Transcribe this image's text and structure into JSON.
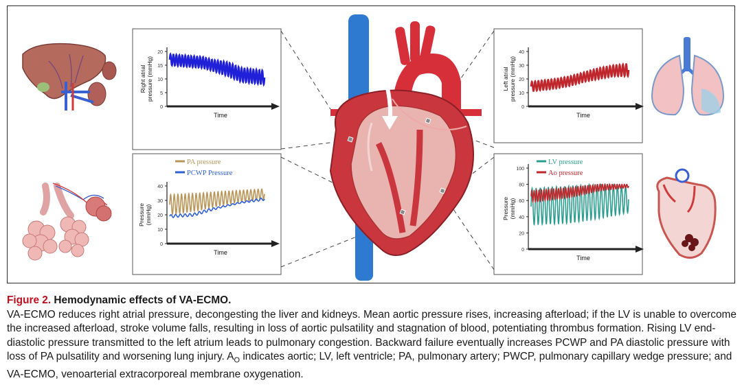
{
  "figure": {
    "caption_label": "Figure 2.",
    "caption_title": "Hemodynamic effects of VA-ECMO.",
    "caption_body_1": "VA-ECMO reduces right atrial pressure, decongesting the liver and kidneys. Mean aortic pressure rises, increasing afterload; if the LV is unable to overcome the increased afterload, stroke volume falls, resulting in loss of aortic pulsatility and stagnation of blood, potentiating thrombus formation. Rising LV end-diastolic pressure transmitted to the left atrium leads to pulmonary congestion. Backward failure eventually increases PCWP and PA diastolic pressure with loss of PA pulsatility and worsening lung injury. A",
    "caption_sub": "O",
    "caption_body_2": " indicates aortic; LV, left ventricle; PA, pulmonary artery; PWCP, pulmonary capillary wedge pressure; and VA-ECMO, venoarterial extracorporeal membrane oxygenation."
  },
  "colors": {
    "ra_line": "#2020d8",
    "la_line": "#c0272d",
    "pa_line": "#b8965a",
    "pcwp_line": "#2e5fd6",
    "lv_line": "#2a9d8f",
    "ao_line": "#c0272d",
    "caption_red": "#c00d1e"
  },
  "chart_data": [
    {
      "type": "line",
      "ylabel": "Right atrial pressure (mmHg)",
      "xlabel": "Time",
      "yticks": [
        "0",
        "5",
        "10",
        "15",
        "20"
      ],
      "ylim": [
        0,
        20
      ],
      "series": [
        {
          "values": [
            {
              "t": 0.0,
              "lo": 15,
              "hi": 19
            },
            {
              "t": 0.35,
              "lo": 14,
              "hi": 18
            },
            {
              "t": 0.45,
              "lo": 13,
              "hi": 17
            },
            {
              "t": 0.62,
              "lo": 11,
              "hi": 16
            },
            {
              "t": 0.75,
              "lo": 9,
              "hi": 14
            },
            {
              "t": 1.0,
              "lo": 8,
              "hi": 13
            }
          ]
        }
      ]
    },
    {
      "type": "line",
      "ylabel": "Left atrial pressure (mmHg)",
      "xlabel": "Time",
      "yticks": [
        "0",
        "10",
        "20",
        "30",
        "40"
      ],
      "ylim": [
        0,
        40
      ],
      "series": [
        {
          "values": [
            {
              "t": 0.0,
              "lo": 11,
              "hi": 18
            },
            {
              "t": 0.25,
              "lo": 13,
              "hi": 20
            },
            {
              "t": 0.4,
              "lo": 15,
              "hi": 22
            },
            {
              "t": 0.55,
              "lo": 18,
              "hi": 25
            },
            {
              "t": 0.7,
              "lo": 20,
              "hi": 28
            },
            {
              "t": 0.85,
              "lo": 22,
              "hi": 30
            },
            {
              "t": 1.0,
              "lo": 22,
              "hi": 31
            }
          ]
        }
      ]
    },
    {
      "type": "line",
      "ylabel": "Pressure (mmHg)",
      "xlabel": "Time",
      "yticks": [
        "0",
        "10",
        "20",
        "30",
        "40"
      ],
      "ylim": [
        0,
        40
      ],
      "series": [
        {
          "name": "PA pressure",
          "values": [
            {
              "t": 0.0,
              "lo": 20,
              "hi": 34
            },
            {
              "t": 0.3,
              "lo": 23,
              "hi": 35
            },
            {
              "t": 0.5,
              "lo": 26,
              "hi": 36
            },
            {
              "t": 0.75,
              "lo": 29,
              "hi": 37
            },
            {
              "t": 1.0,
              "lo": 31,
              "hi": 38
            }
          ]
        },
        {
          "name": "PCWP Pressure",
          "values": [
            {
              "t": 0.0,
              "lo": 18,
              "hi": 20
            },
            {
              "t": 0.25,
              "lo": 19,
              "hi": 21
            },
            {
              "t": 0.4,
              "lo": 22,
              "hi": 24
            },
            {
              "t": 0.55,
              "lo": 25,
              "hi": 26
            },
            {
              "t": 0.75,
              "lo": 28,
              "hi": 29
            },
            {
              "t": 1.0,
              "lo": 30,
              "hi": 32
            }
          ]
        }
      ]
    },
    {
      "type": "line",
      "ylabel": "Pressure (mmHg)",
      "xlabel": "Time",
      "yticks": [
        "0",
        "20",
        "40",
        "60",
        "80",
        "100"
      ],
      "ylim": [
        0,
        100
      ],
      "series": [
        {
          "name": "LV pressure",
          "values": [
            {
              "t": 0.0,
              "lo": 30,
              "hi": 75
            },
            {
              "t": 0.4,
              "lo": 32,
              "hi": 78
            },
            {
              "t": 0.7,
              "lo": 38,
              "hi": 80
            },
            {
              "t": 1.0,
              "lo": 45,
              "hi": 78
            }
          ]
        },
        {
          "name": "Ao pressure",
          "values": [
            {
              "t": 0.0,
              "lo": 58,
              "hi": 72
            },
            {
              "t": 0.4,
              "lo": 64,
              "hi": 76
            },
            {
              "t": 0.7,
              "lo": 72,
              "hi": 80
            },
            {
              "t": 1.0,
              "lo": 76,
              "hi": 80
            }
          ]
        }
      ]
    }
  ]
}
